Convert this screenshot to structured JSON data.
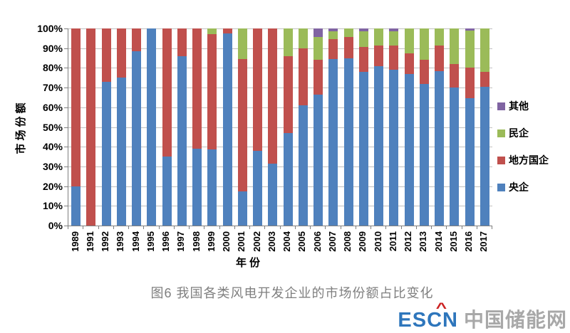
{
  "chart_data": {
    "type": "bar",
    "stacked": true,
    "orientation": "vertical",
    "title": "",
    "xlabel": "年份",
    "ylabel": "市场份额",
    "ylim": [
      0,
      100
    ],
    "grid": true,
    "legend_position": "right",
    "y_ticks": [
      "100%",
      "90%",
      "80%",
      "70%",
      "60%",
      "50%",
      "40%",
      "30%",
      "20%",
      "10%",
      "0%"
    ],
    "categories": [
      "1989",
      "1991",
      "1992",
      "1993",
      "1994",
      "1995",
      "1996",
      "1997",
      "1998",
      "1999",
      "2000",
      "2001",
      "2002",
      "2003",
      "2004",
      "2005",
      "2006",
      "2007",
      "2008",
      "2009",
      "2010",
      "2011",
      "2012",
      "2013",
      "2014",
      "2015",
      "2016",
      "2017"
    ],
    "series": [
      {
        "name": "央企",
        "color": "#4F81BD",
        "values": [
          20,
          0,
          73,
          75,
          88.5,
          100,
          35,
          86,
          39,
          38.5,
          97.5,
          17.5,
          38,
          31.5,
          47,
          61,
          66.5,
          84.5,
          85,
          78,
          81,
          79,
          77,
          72,
          78.5,
          70,
          64.5,
          70.5
        ]
      },
      {
        "name": "地方国企",
        "color": "#C0504D",
        "values": [
          80,
          100,
          27,
          25,
          11.5,
          0,
          65,
          14,
          61,
          58.5,
          2.5,
          67,
          62,
          68.5,
          39,
          29,
          17.5,
          10,
          10.5,
          12.5,
          10.5,
          12.5,
          10.5,
          12,
          13,
          12,
          15.5,
          7.5
        ]
      },
      {
        "name": "民企",
        "color": "#9BBB59",
        "values": [
          0,
          0,
          0,
          0,
          0,
          0,
          0,
          0,
          0,
          3,
          0,
          15.5,
          0,
          0,
          14,
          10,
          11.5,
          4,
          4.5,
          8,
          8.5,
          7,
          12.5,
          16,
          8.5,
          18,
          19,
          22
        ]
      },
      {
        "name": "其他",
        "color": "#8064A2",
        "values": [
          0,
          0,
          0,
          0,
          0,
          0,
          0,
          0,
          0,
          0,
          0,
          0,
          0,
          0,
          0,
          0,
          4.5,
          1.5,
          0,
          1.5,
          0,
          1.5,
          0,
          0,
          0,
          0,
          1,
          0
        ]
      }
    ],
    "legend_items": [
      {
        "label": "其他",
        "color": "#8064A2"
      },
      {
        "label": "民企",
        "color": "#9BBB59"
      },
      {
        "label": "地方国企",
        "color": "#C0504D"
      },
      {
        "label": "央企",
        "color": "#4F81BD"
      }
    ]
  },
  "caption": "图6 我国各类风电开发企业的市场份额占比变化",
  "watermark": {
    "logo_text": "ESCN",
    "logo_color": "#2E76BC",
    "accent_glyph": "^",
    "accent_color": "#CC2222",
    "site_text": "中国储能网",
    "site_color": "#A8A8A8"
  }
}
